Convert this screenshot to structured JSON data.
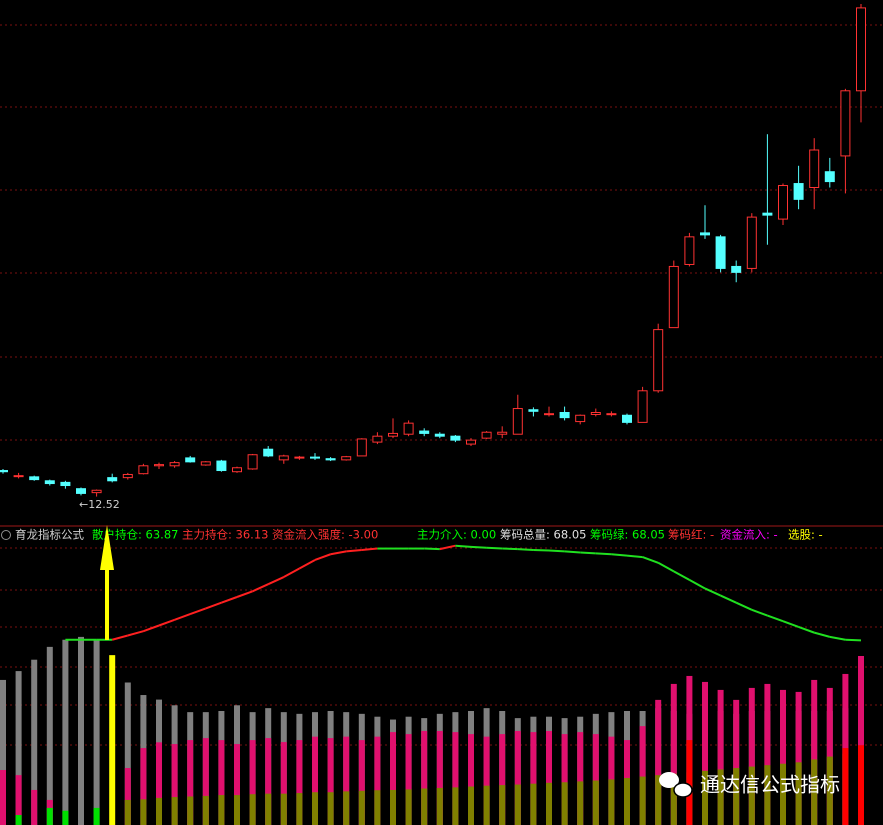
{
  "chart_data": [
    {
      "type": "candlestick",
      "low_label": "←12.52",
      "ylim": [
        11.8,
        25.1
      ],
      "up_color": "#ff3232",
      "down_color": "#54ffff",
      "open": [
        13.18,
        13.05,
        13.02,
        12.92,
        12.88,
        12.72,
        12.62,
        13.0,
        13.0,
        13.1,
        13.3,
        13.3,
        13.5,
        13.32,
        13.42,
        13.15,
        13.22,
        13.72,
        13.45,
        13.5,
        13.52,
        13.48,
        13.45,
        13.55,
        13.9,
        14.05,
        14.1,
        14.18,
        14.1,
        14.05,
        13.85,
        14.0,
        14.1,
        14.1,
        14.72,
        14.6,
        14.65,
        14.42,
        14.6,
        14.6,
        14.58,
        14.4,
        15.2,
        16.8,
        18.4,
        19.2,
        19.1,
        18.35,
        18.3,
        19.7,
        19.55,
        20.45,
        20.35,
        20.75,
        21.15,
        22.8
      ],
      "high": [
        13.22,
        13.12,
        13.05,
        12.95,
        12.92,
        12.75,
        12.7,
        13.1,
        13.12,
        13.35,
        13.38,
        13.42,
        13.55,
        13.42,
        13.45,
        13.28,
        13.6,
        13.8,
        13.58,
        13.55,
        13.62,
        13.52,
        13.55,
        14.0,
        14.15,
        14.5,
        14.45,
        14.25,
        14.15,
        14.08,
        14.0,
        14.18,
        14.3,
        15.1,
        14.78,
        14.8,
        14.8,
        14.6,
        14.75,
        14.68,
        14.62,
        15.3,
        16.9,
        18.5,
        19.2,
        19.9,
        19.15,
        18.5,
        19.7,
        21.7,
        20.45,
        20.9,
        21.6,
        21.1,
        22.85,
        25.0
      ],
      "low": [
        13.1,
        12.98,
        12.92,
        12.8,
        12.72,
        12.55,
        12.52,
        12.88,
        12.95,
        13.08,
        13.22,
        13.25,
        13.38,
        13.3,
        13.15,
        13.12,
        13.2,
        13.52,
        13.35,
        13.45,
        13.45,
        13.42,
        13.43,
        13.55,
        13.85,
        14.0,
        14.05,
        14.05,
        14.0,
        13.9,
        13.8,
        13.98,
        14.0,
        14.1,
        14.55,
        14.55,
        14.45,
        14.35,
        14.55,
        14.55,
        14.35,
        14.4,
        15.15,
        16.8,
        18.35,
        19.05,
        18.2,
        17.95,
        18.2,
        18.9,
        19.4,
        19.8,
        19.8,
        20.35,
        20.2,
        22.0
      ],
      "close": [
        13.15,
        13.05,
        12.95,
        12.85,
        12.8,
        12.6,
        12.68,
        12.92,
        13.08,
        13.3,
        13.33,
        13.38,
        13.4,
        13.4,
        13.18,
        13.25,
        13.58,
        13.55,
        13.55,
        13.52,
        13.5,
        13.45,
        13.53,
        13.98,
        14.05,
        14.12,
        14.38,
        14.12,
        14.05,
        13.95,
        13.95,
        14.15,
        14.15,
        14.75,
        14.68,
        14.62,
        14.52,
        14.58,
        14.65,
        14.62,
        14.4,
        15.2,
        16.75,
        18.35,
        19.1,
        19.15,
        18.3,
        18.2,
        19.6,
        19.65,
        20.4,
        20.05,
        21.3,
        20.5,
        22.8,
        24.9
      ]
    },
    {
      "type": "combo",
      "title": "育龙指标公式",
      "items": [
        {
          "text": "散户持仓: 63.87",
          "color": "#00ff00"
        },
        {
          "text": "主力持仓: 36.13",
          "color": "#ff3232"
        },
        {
          "text": "资金流入强度: -3.00",
          "color": "#ff3232"
        },
        {
          "text": "主力介入: 0.00",
          "color": "#00ff00"
        },
        {
          "text": "筹码总量: 68.05",
          "color": "#e0e0e0"
        },
        {
          "text": "筹码绿: 68.05",
          "color": "#00ff00"
        },
        {
          "text": "筹码红: -",
          "color": "#ff3232"
        },
        {
          "text": "资金流入: -",
          "color": "#ff00ff"
        },
        {
          "text": "选股: -",
          "color": "#ffff00"
        }
      ],
      "ylim": [
        0,
        100
      ],
      "series": [
        {
          "color": "#808080",
          "values": [
            50.9,
            54,
            58,
            62.5,
            65,
            66,
            65,
            null,
            50,
            45.6,
            44,
            42,
            39.6,
            39.6,
            40,
            42,
            39.6,
            41,
            39.6,
            39,
            39.6,
            40,
            39.6,
            39,
            38,
            37,
            38,
            37.5,
            39,
            39.6,
            40,
            41,
            40,
            37.5,
            38,
            38,
            37.5,
            38,
            39,
            39.6,
            40,
            40,
            41,
            40,
            39,
            40,
            40,
            39,
            40,
            40,
            39,
            40,
            40,
            40,
            41,
            41
          ]
        },
        {
          "color": "#e0106e",
          "values": [
            19.3,
            17.5,
            12.3,
            8.8,
            null,
            null,
            null,
            null,
            20,
            27,
            29,
            28.4,
            29.8,
            30.5,
            29.8,
            28.4,
            29.8,
            30.5,
            29.1,
            29.8,
            31,
            30.5,
            31,
            29.8,
            31,
            32.6,
            31.9,
            33,
            33,
            32.6,
            31.9,
            31,
            31.9,
            33,
            32.6,
            33,
            31.9,
            32.6,
            31.9,
            31,
            29.8,
            34.7,
            43.9,
            49.5,
            52.3,
            50.2,
            47.4,
            43.9,
            48.1,
            49.5,
            47.4,
            46.7,
            50.9,
            48.1,
            53,
            59.3
          ]
        },
        {
          "color": "#808000",
          "values": [
            null,
            null,
            null,
            null,
            null,
            null,
            null,
            null,
            8.8,
            9,
            9.5,
            9.8,
            10,
            10.2,
            10.5,
            10.5,
            10.8,
            11,
            11,
            11.2,
            11.5,
            11.5,
            11.8,
            12,
            12.2,
            12.3,
            12.5,
            12.8,
            13,
            13.2,
            13.5,
            13.8,
            14,
            14.2,
            14.5,
            14.8,
            15,
            15.3,
            15.6,
            16,
            16.5,
            17,
            17.5,
            18,
            18.5,
            19,
            19.5,
            20,
            20.5,
            21,
            21.5,
            22,
            23,
            24,
            25,
            25.6
          ]
        },
        {
          "color": "#00e000",
          "values": [
            null,
            3.5,
            null,
            6,
            5,
            null,
            6,
            null,
            null,
            null,
            null,
            null,
            null,
            null,
            null,
            null,
            null,
            null,
            null,
            null,
            null,
            null,
            null,
            null,
            null,
            null,
            null,
            null,
            null,
            null,
            null,
            null,
            null,
            null,
            null,
            null,
            null,
            null,
            null,
            null,
            null,
            null,
            null,
            null,
            null,
            null,
            null,
            null,
            null,
            null,
            null,
            null,
            null,
            null,
            null,
            null
          ]
        },
        {
          "color": "#ff0000",
          "values": [
            null,
            null,
            null,
            null,
            null,
            null,
            null,
            null,
            null,
            null,
            null,
            null,
            null,
            null,
            null,
            null,
            null,
            null,
            null,
            null,
            null,
            null,
            null,
            null,
            null,
            null,
            null,
            null,
            null,
            null,
            null,
            null,
            null,
            null,
            null,
            null,
            null,
            null,
            null,
            null,
            null,
            null,
            null,
            null,
            29.8,
            null,
            null,
            null,
            null,
            null,
            null,
            null,
            null,
            null,
            27,
            28
          ]
        },
        {
          "color": "#ffff00",
          "values": [
            null,
            null,
            null,
            null,
            null,
            null,
            null,
            59.6,
            null,
            null,
            null,
            null,
            null,
            null,
            null,
            null,
            null,
            null,
            null,
            null,
            null,
            null,
            null,
            null,
            null,
            null,
            null,
            null,
            null,
            null,
            null,
            null,
            null,
            null,
            null,
            null,
            null,
            null,
            null,
            null,
            null,
            null,
            null,
            null,
            null,
            null,
            null,
            null,
            null,
            null,
            null,
            null,
            null,
            null,
            null,
            null
          ]
        }
      ],
      "line": {
        "up_color": "#ff2020",
        "down_color": "#20e020",
        "values": [
          null,
          null,
          null,
          null,
          65,
          65,
          65,
          65,
          66.5,
          68,
          70,
          72,
          74,
          76,
          78,
          80,
          82,
          84.5,
          87,
          90,
          93,
          95,
          96,
          96.5,
          97,
          97,
          97,
          97,
          96.8,
          98,
          97.6,
          97.3,
          97,
          96.8,
          96.5,
          96.3,
          96,
          95.6,
          95.3,
          95,
          94.5,
          94,
          92,
          89,
          86,
          83,
          80.5,
          78,
          75.5,
          73.5,
          71.5,
          69.5,
          67.5,
          66,
          65,
          64.8
        ]
      }
    },
    {
      "watermark": "通达信公式指标"
    }
  ]
}
